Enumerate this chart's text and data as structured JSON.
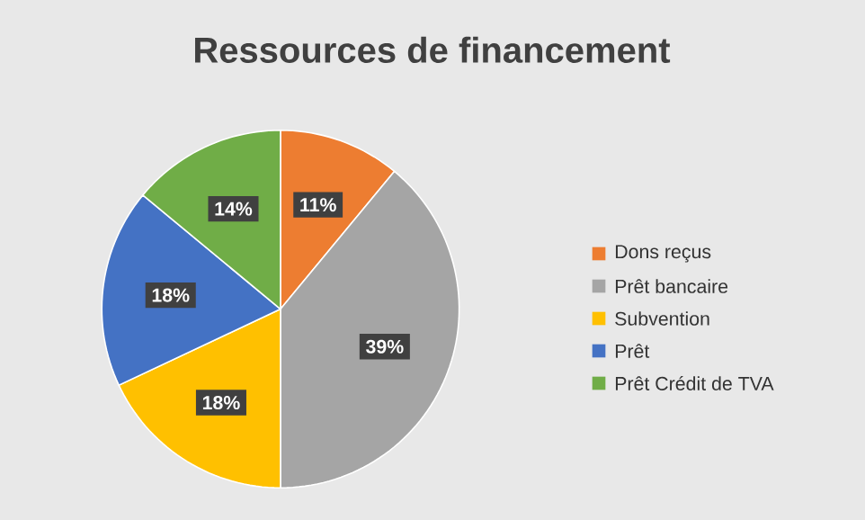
{
  "chart_data": {
    "type": "pie",
    "title": "Ressources de financement",
    "categories": [
      "Dons reçus",
      "Prêt bancaire",
      "Subvention",
      "Prêt",
      "Prêt Crédit de TVA"
    ],
    "values": [
      11,
      39,
      18,
      18,
      14
    ],
    "value_labels": [
      "11%",
      "39%",
      "18%",
      "18%",
      "14%"
    ],
    "colors": [
      "#ed7d31",
      "#a5a5a5",
      "#ffc000",
      "#4472c4",
      "#70ad47"
    ],
    "legend": "right"
  }
}
